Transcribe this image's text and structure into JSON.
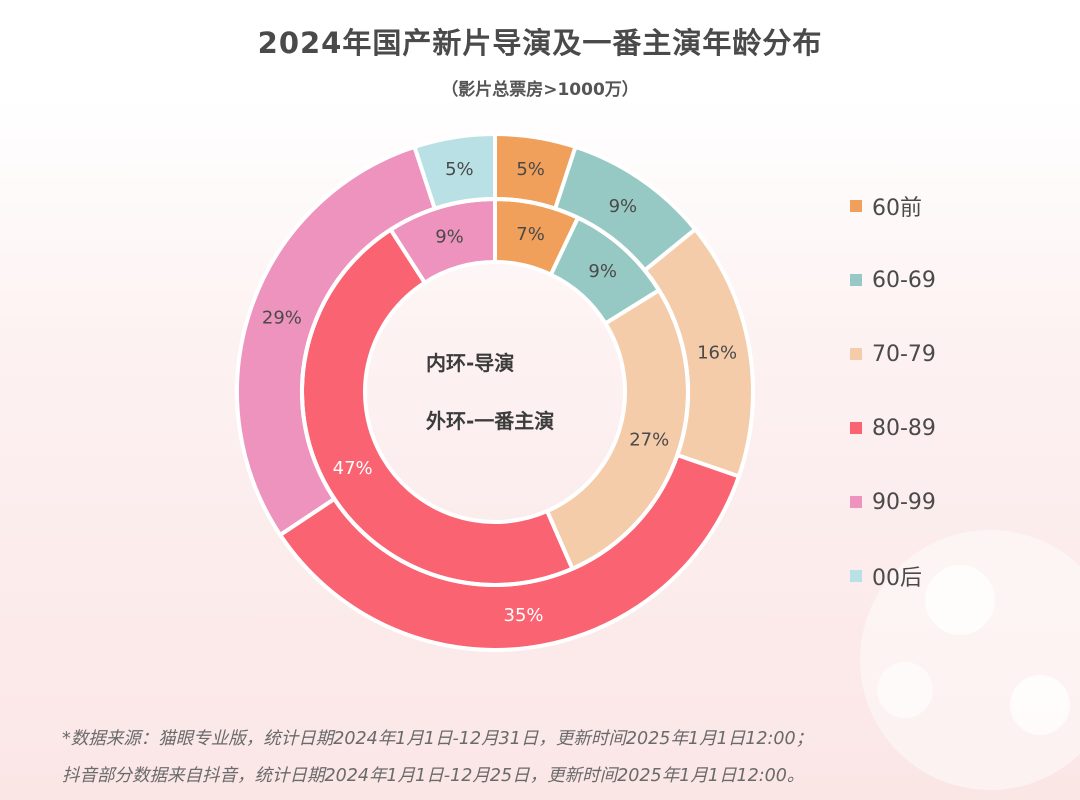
{
  "title": "2024年国产新片导演及一番主演年龄分布",
  "subtitle": "（影片总票房>1000万）",
  "center": {
    "inner_label": "内环-导演",
    "outer_label": "外环-一番主演"
  },
  "legend": [
    "60前",
    "60-69",
    "70-79",
    "80-89",
    "90-99",
    "00后"
  ],
  "footnotes": [
    "*数据来源：猫眼专业版，统计日期2024年1月1日-12月31日，更新时间2025年1月1日12:00；",
    "抖音部分数据来自抖音，统计日期2024年1月1日-12月25日，更新时间2025年1月1日12:00。"
  ],
  "chart_data": {
    "type": "pie",
    "subtype": "nested-donut",
    "categories": [
      "60前",
      "60-69",
      "70-79",
      "80-89",
      "90-99",
      "00后"
    ],
    "colors": [
      "#f0a05a",
      "#97c9c4",
      "#f5ccaa",
      "#fa6371",
      "#ee93bd",
      "#b9e1e5"
    ],
    "series": [
      {
        "name": "导演",
        "ring": "inner",
        "values": [
          7,
          9,
          27,
          47,
          9,
          0
        ],
        "labels": [
          "7%",
          "9%",
          "27%",
          "47%",
          "9%",
          ""
        ]
      },
      {
        "name": "一番主演",
        "ring": "outer",
        "values": [
          5,
          9,
          16,
          35,
          29,
          5
        ],
        "labels": [
          "5%",
          "9%",
          "16%",
          "35%",
          "29%",
          "5%"
        ]
      }
    ],
    "legend_position": "right"
  }
}
